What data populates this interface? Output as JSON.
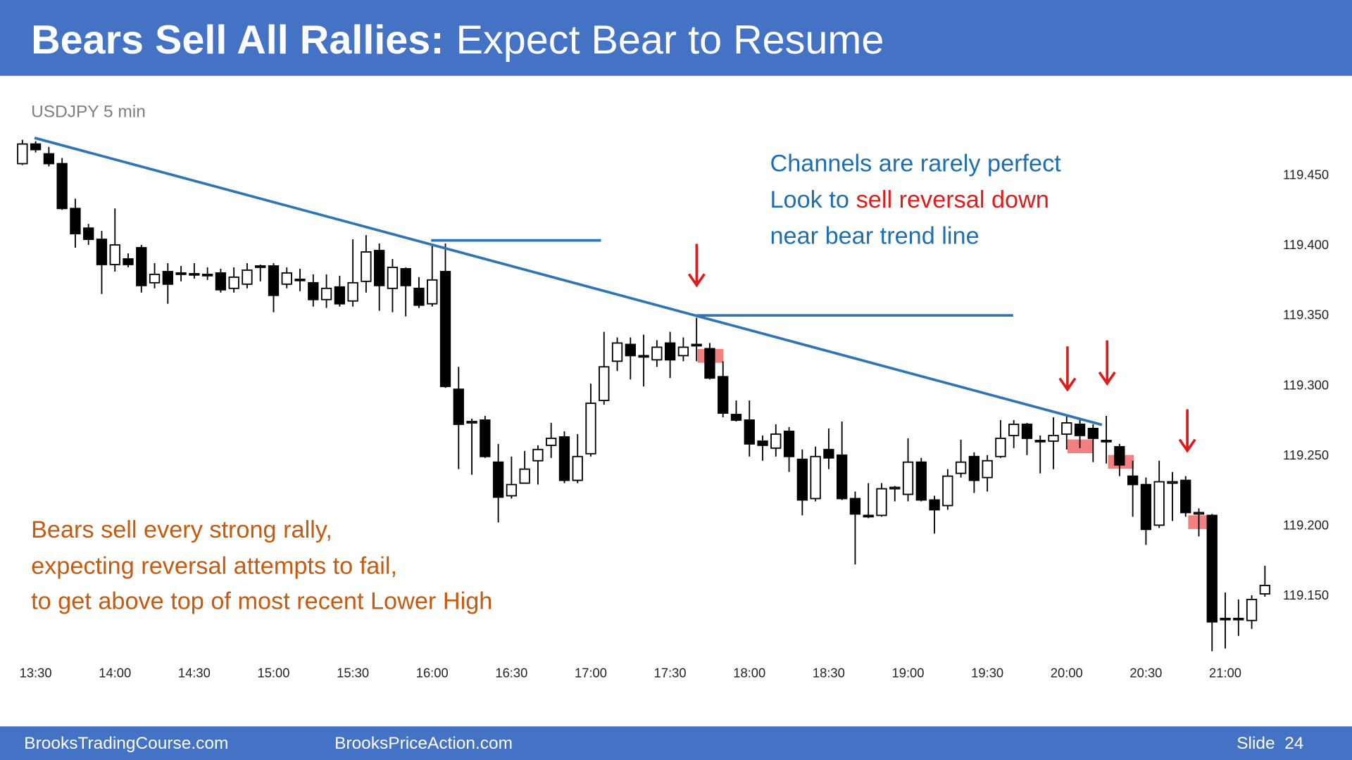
{
  "header": {
    "title_strong": "Bears Sell All Rallies:",
    "title": "Expect Bear to Resume"
  },
  "chart_data": {
    "type": "candlestick",
    "title": "USDJPY 5 min",
    "categories": [
      null,
      "13:30",
      null,
      null,
      null,
      null,
      null,
      "14:00",
      null,
      null,
      null,
      null,
      null,
      "14:30",
      null,
      null,
      null,
      null,
      null,
      "15:00",
      null,
      null,
      null,
      null,
      null,
      "15:30",
      null,
      null,
      null,
      null,
      null,
      "16:00",
      null,
      null,
      null,
      null,
      null,
      "16:30",
      null,
      null,
      null,
      null,
      null,
      "17:00",
      null,
      null,
      null,
      null,
      null,
      "17:30",
      null,
      null,
      null,
      null,
      null,
      "18:00",
      null,
      null,
      null,
      null,
      null,
      "18:30",
      null,
      null,
      null,
      null,
      null,
      "19:00",
      null,
      null,
      null,
      null,
      null,
      "19:30",
      null,
      null,
      null,
      null,
      null,
      "20:00",
      null,
      null,
      null,
      null,
      null,
      "20:30",
      null,
      null,
      null,
      null,
      null,
      "21:00",
      null,
      null,
      null
    ],
    "open": [
      119.458,
      119.472,
      119.465,
      119.458,
      119.426,
      119.412,
      119.404,
      119.386,
      119.39,
      119.398,
      119.373,
      119.381,
      119.38,
      119.379,
      119.379,
      119.38,
      119.369,
      119.372,
      119.385,
      119.385,
      119.372,
      119.375,
      119.373,
      119.361,
      119.37,
      119.36,
      119.374,
      119.396,
      119.369,
      119.383,
      119.369,
      119.358,
      119.381,
      119.297,
      119.273,
      119.275,
      119.245,
      119.221,
      119.23,
      119.246,
      119.257,
      119.263,
      119.232,
      119.251,
      119.289,
      119.317,
      119.329,
      119.321,
      119.318,
      119.33,
      119.321,
      119.329,
      119.326,
      119.306,
      119.279,
      119.275,
      119.26,
      119.255,
      119.267,
      119.247,
      119.219,
      119.254,
      119.25,
      119.219,
      119.207,
      119.207,
      119.226,
      119.222,
      119.245,
      119.218,
      119.214,
      119.237,
      119.249,
      119.234,
      119.249,
      119.264,
      119.272,
      119.26,
      119.26,
      119.265,
      119.272,
      119.269,
      119.26,
      119.256,
      119.235,
      119.229,
      119.2,
      119.23,
      119.232,
      119.208,
      119.207,
      119.133,
      119.133,
      119.132,
      119.151
    ],
    "high": [
      119.475,
      119.474,
      119.47,
      119.462,
      119.433,
      119.415,
      119.41,
      119.426,
      119.394,
      119.4,
      119.387,
      119.387,
      119.385,
      119.387,
      119.384,
      119.383,
      119.384,
      119.387,
      119.386,
      119.387,
      119.384,
      119.383,
      119.379,
      119.379,
      119.378,
      119.404,
      119.407,
      119.401,
      119.39,
      119.384,
      119.377,
      119.401,
      119.401,
      119.313,
      119.276,
      119.278,
      119.258,
      119.249,
      119.253,
      119.257,
      119.273,
      119.267,
      119.265,
      119.301,
      119.338,
      119.334,
      119.334,
      119.336,
      119.332,
      119.338,
      119.334,
      119.348,
      119.33,
      119.317,
      119.289,
      119.289,
      119.264,
      119.272,
      119.27,
      119.254,
      119.256,
      119.269,
      119.274,
      119.224,
      119.23,
      119.23,
      119.228,
      119.262,
      119.248,
      119.221,
      119.24,
      119.261,
      119.252,
      119.25,
      119.275,
      119.275,
      119.273,
      119.264,
      119.277,
      119.278,
      119.275,
      119.272,
      119.278,
      119.258,
      119.246,
      119.234,
      119.246,
      119.238,
      119.235,
      119.212,
      119.208,
      119.152,
      119.147,
      119.15,
      119.171
    ],
    "low": [
      119.457,
      119.466,
      119.456,
      119.425,
      119.398,
      119.4,
      119.365,
      119.381,
      119.384,
      119.366,
      119.369,
      119.358,
      119.374,
      119.376,
      119.375,
      119.366,
      119.366,
      119.369,
      119.374,
      119.352,
      119.369,
      119.367,
      119.356,
      119.355,
      119.356,
      119.356,
      119.366,
      119.353,
      119.352,
      119.349,
      119.355,
      119.356,
      119.298,
      119.24,
      119.236,
      119.248,
      119.202,
      119.219,
      119.23,
      119.229,
      119.248,
      119.23,
      119.23,
      119.249,
      119.286,
      119.31,
      119.304,
      119.299,
      119.313,
      119.305,
      119.317,
      119.317,
      119.304,
      119.277,
      119.274,
      119.249,
      119.246,
      119.249,
      119.238,
      119.207,
      119.217,
      119.24,
      119.218,
      119.172,
      119.205,
      119.206,
      119.217,
      119.217,
      119.217,
      119.194,
      119.211,
      119.234,
      119.223,
      119.224,
      119.248,
      119.255,
      119.25,
      119.237,
      119.24,
      119.254,
      119.255,
      119.245,
      119.244,
      119.235,
      119.206,
      119.186,
      119.198,
      119.203,
      119.206,
      119.192,
      119.11,
      119.112,
      119.121,
      119.126,
      119.149
    ],
    "close": [
      119.472,
      119.468,
      119.458,
      119.426,
      119.408,
      119.404,
      119.386,
      119.4,
      119.386,
      119.371,
      119.379,
      119.372,
      119.379,
      119.379,
      119.378,
      119.368,
      119.377,
      119.382,
      119.384,
      119.364,
      119.38,
      119.375,
      119.361,
      119.369,
      119.358,
      119.373,
      119.395,
      119.371,
      119.384,
      119.371,
      119.357,
      119.375,
      119.299,
      119.272,
      119.274,
      119.249,
      119.22,
      119.229,
      119.24,
      119.254,
      119.262,
      119.232,
      119.249,
      119.287,
      119.313,
      119.33,
      119.321,
      119.32,
      119.327,
      119.318,
      119.327,
      119.328,
      119.305,
      119.28,
      119.275,
      119.258,
      119.257,
      119.265,
      119.249,
      119.218,
      119.249,
      119.248,
      119.219,
      119.208,
      119.206,
      119.226,
      119.227,
      119.245,
      119.218,
      119.211,
      119.235,
      119.245,
      119.232,
      119.246,
      119.262,
      119.272,
      119.262,
      119.26,
      119.264,
      119.273,
      119.264,
      119.262,
      119.26,
      119.243,
      119.229,
      119.197,
      119.231,
      119.231,
      119.209,
      119.209,
      119.131,
      119.133,
      119.133,
      119.147,
      119.157
    ],
    "up_color": "#ffffff",
    "down_color": "#000000",
    "ylim": [
      119.105,
      119.485
    ],
    "yticks": [
      {
        "value": 119.15,
        "label": "119.150"
      },
      {
        "value": 119.2,
        "label": "119.200"
      },
      {
        "value": 119.25,
        "label": "119.250"
      },
      {
        "value": 119.3,
        "label": "119.300"
      },
      {
        "value": 119.35,
        "label": "119.350"
      },
      {
        "value": 119.4,
        "label": "119.400"
      },
      {
        "value": 119.45,
        "label": "119.450"
      }
    ],
    "grid": false,
    "notes_right": [
      "Channels are rarely perfect",
      "Look to",
      "sell reversal down",
      "near bear trend line"
    ],
    "notes_left": [
      "Bears sell every strong rally,",
      "expecting reversal attempts to fail,",
      "to get above top of most recent Lower High"
    ]
  },
  "footer": {
    "left": "BrooksTradingCourse.com",
    "center": "BrooksPriceAction.com",
    "slide": "Slide  24"
  }
}
